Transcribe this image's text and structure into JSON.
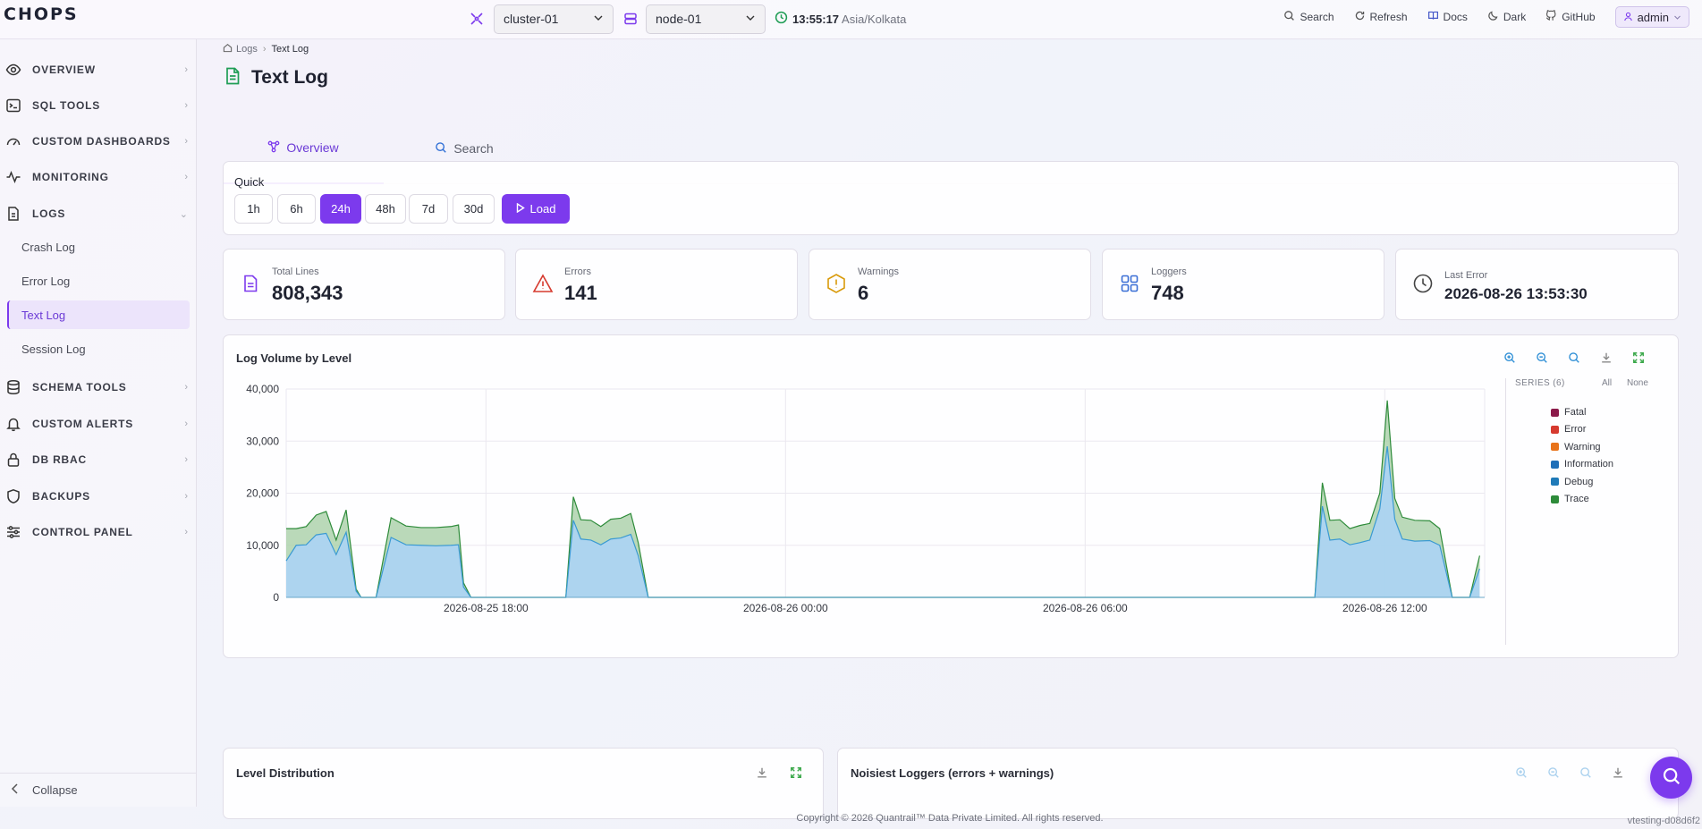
{
  "app": {
    "logo_text": "CHOPS"
  },
  "header": {
    "cluster_select": {
      "value": "cluster-01"
    },
    "node_select": {
      "value": "node-01"
    },
    "clock": {
      "time": "13:55:17",
      "zone": "Asia/Kolkata"
    },
    "links": {
      "search": "Search",
      "refresh": "Refresh",
      "docs": "Docs",
      "dark": "Dark",
      "github": "GitHub"
    },
    "user": "admin"
  },
  "sidebar": {
    "items": [
      {
        "label": "OVERVIEW",
        "icon": "eye-icon"
      },
      {
        "label": "SQL TOOLS",
        "icon": "terminal-icon"
      },
      {
        "label": "CUSTOM DASHBOARDS",
        "icon": "gauge-icon"
      },
      {
        "label": "MONITORING",
        "icon": "activity-icon"
      },
      {
        "label": "LOGS",
        "icon": "file-icon"
      },
      {
        "label": "SCHEMA TOOLS",
        "icon": "database-icon"
      },
      {
        "label": "CUSTOM ALERTS",
        "icon": "bell-icon"
      },
      {
        "label": "DB RBAC",
        "icon": "lock-icon"
      },
      {
        "label": "BACKUPS",
        "icon": "shield-icon"
      },
      {
        "label": "CONTROL PANEL",
        "icon": "sliders-icon"
      }
    ],
    "logs_children": [
      "Crash Log",
      "Error Log",
      "Text Log",
      "Session Log"
    ],
    "collapse": "Collapse"
  },
  "breadcrumb": {
    "parent": "Logs",
    "current": "Text Log"
  },
  "page": {
    "title": "Text Log"
  },
  "tabs": [
    "Overview",
    "Search"
  ],
  "quick": {
    "label": "Quick",
    "options": [
      "1h",
      "6h",
      "24h",
      "48h",
      "7d",
      "30d"
    ],
    "selected": "24h",
    "load_label": "Load"
  },
  "stats": {
    "total_lines": {
      "label": "Total Lines",
      "value": "808,343"
    },
    "errors": {
      "label": "Errors",
      "value": "141"
    },
    "warnings": {
      "label": "Warnings",
      "value": "6"
    },
    "loggers": {
      "label": "Loggers",
      "value": "748"
    },
    "last_error": {
      "label": "Last Error",
      "value": "2026-08-26 13:53:30"
    }
  },
  "colors": {
    "accent": "#7c3aed",
    "fatal": "#8b1a4a",
    "error": "#d63a2f",
    "warning": "#e8731a",
    "information": "#1f6fb8",
    "debug": "#1f7ab8",
    "trace": "#2e8b3a"
  },
  "chart_data": {
    "type": "area",
    "title": "Log Volume by Level",
    "ylim": [
      0,
      40000
    ],
    "yticks": [
      "0",
      "10,000",
      "20,000",
      "30,000",
      "40,000"
    ],
    "xtick_labels": [
      "2026-08-25 18:00",
      "2026-08-26 00:00",
      "2026-08-26 06:00",
      "2026-08-26 12:00"
    ],
    "x_start": "2026-08-25 14:00",
    "x_end": "2026-08-26 14:00",
    "legend_header": "SERIES (6)",
    "legend_all": "All",
    "legend_none": "None",
    "legend": [
      "Fatal",
      "Error",
      "Warning",
      "Information",
      "Debug",
      "Trace"
    ],
    "stacked": true,
    "debug": [
      [
        0,
        7000
      ],
      [
        0.2,
        10000
      ],
      [
        0.4,
        10100
      ],
      [
        0.6,
        12000
      ],
      [
        0.8,
        12300
      ],
      [
        1.0,
        8200
      ],
      [
        1.2,
        12500
      ],
      [
        1.4,
        1200
      ],
      [
        1.5,
        0
      ],
      [
        1.8,
        0
      ],
      [
        2.1,
        11500
      ],
      [
        2.4,
        10100
      ],
      [
        2.7,
        10000
      ],
      [
        3.0,
        9900
      ],
      [
        3.3,
        10000
      ],
      [
        3.45,
        10100
      ],
      [
        3.55,
        2000
      ],
      [
        3.7,
        0
      ],
      [
        5.6,
        0
      ],
      [
        5.75,
        14800
      ],
      [
        5.9,
        11200
      ],
      [
        6.1,
        11000
      ],
      [
        6.3,
        10100
      ],
      [
        6.5,
        11200
      ],
      [
        6.7,
        11400
      ],
      [
        6.9,
        12100
      ],
      [
        7.05,
        8000
      ],
      [
        7.25,
        0
      ],
      [
        20.6,
        0
      ],
      [
        20.75,
        17500
      ],
      [
        20.9,
        11000
      ],
      [
        21.1,
        11200
      ],
      [
        21.3,
        10100
      ],
      [
        21.5,
        10500
      ],
      [
        21.7,
        11000
      ],
      [
        21.9,
        17000
      ],
      [
        22.05,
        29000
      ],
      [
        22.2,
        15000
      ],
      [
        22.35,
        11200
      ],
      [
        22.6,
        10800
      ],
      [
        22.9,
        10900
      ],
      [
        23.1,
        10000
      ],
      [
        23.35,
        0
      ],
      [
        23.7,
        0
      ],
      [
        23.9,
        5500
      ]
    ],
    "trace": [
      [
        0,
        6200
      ],
      [
        0.2,
        3200
      ],
      [
        0.4,
        3500
      ],
      [
        0.6,
        3800
      ],
      [
        0.8,
        4200
      ],
      [
        1.0,
        2800
      ],
      [
        1.2,
        4300
      ],
      [
        1.4,
        400
      ],
      [
        1.5,
        0
      ],
      [
        1.8,
        0
      ],
      [
        2.1,
        3800
      ],
      [
        2.4,
        3600
      ],
      [
        2.7,
        3400
      ],
      [
        3.0,
        3500
      ],
      [
        3.3,
        3600
      ],
      [
        3.45,
        3800
      ],
      [
        3.55,
        800
      ],
      [
        3.7,
        0
      ],
      [
        5.6,
        0
      ],
      [
        5.75,
        4500
      ],
      [
        5.9,
        3700
      ],
      [
        6.1,
        3800
      ],
      [
        6.3,
        3500
      ],
      [
        6.5,
        3800
      ],
      [
        6.7,
        3800
      ],
      [
        6.9,
        4000
      ],
      [
        7.05,
        2500
      ],
      [
        7.25,
        0
      ],
      [
        20.6,
        0
      ],
      [
        20.75,
        4500
      ],
      [
        20.9,
        3800
      ],
      [
        21.1,
        3700
      ],
      [
        21.3,
        3100
      ],
      [
        21.5,
        3300
      ],
      [
        21.7,
        3200
      ],
      [
        21.9,
        3000
      ],
      [
        22.05,
        8800
      ],
      [
        22.2,
        4000
      ],
      [
        22.35,
        4200
      ],
      [
        22.6,
        4000
      ],
      [
        22.9,
        3800
      ],
      [
        23.1,
        3200
      ],
      [
        23.35,
        0
      ],
      [
        23.7,
        0
      ],
      [
        23.9,
        2500
      ]
    ]
  },
  "panels": {
    "level_distribution": {
      "title": "Level Distribution"
    },
    "noisiest": {
      "title": "Noisiest Loggers (errors + warnings)"
    }
  },
  "footer": {
    "copyright": "Copyright © 2026 Quantrail™ Data Private Limited. All rights reserved.",
    "version": "vtesting-d08d6f2"
  }
}
